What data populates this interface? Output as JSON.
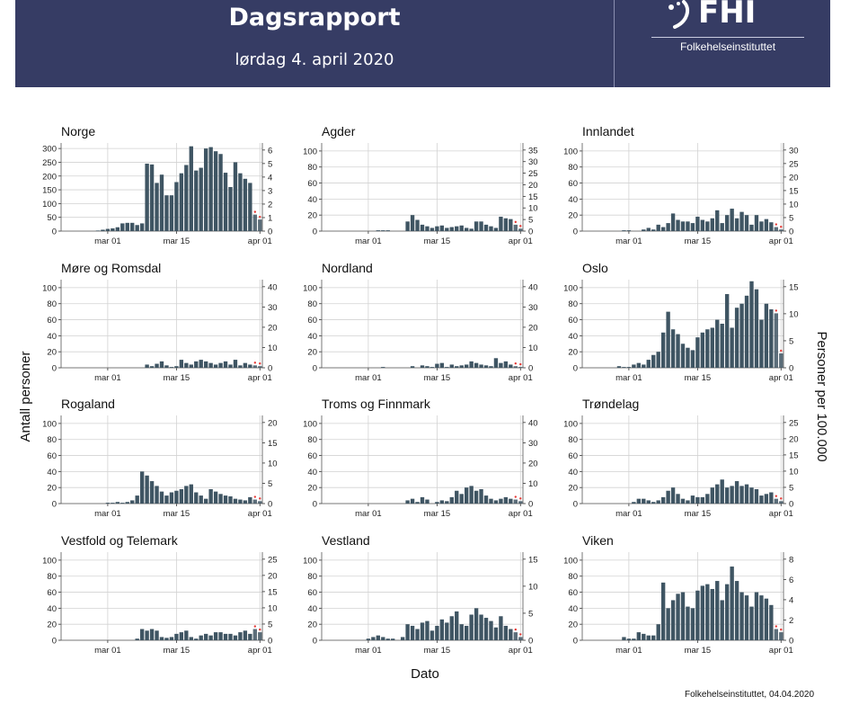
{
  "header": {
    "title": "Dagsrapport",
    "subtitle": "lørdag 4. april 2020",
    "logo_text": "FHI",
    "logo_subtext": "Folkehelseinstituttet"
  },
  "footer": "Folkehelseinstituttet, 04.04.2020",
  "chart_data": {
    "type": "bar",
    "xlabel": "Dato",
    "ylabel": "Antall personer",
    "ylabel_right": "Personer per 100.000",
    "xticks": [
      "mar 01",
      "mar 15",
      "apr 01"
    ],
    "start_date": "2020-02-21",
    "bar_color": "#3f5563",
    "marker_color": "#e53935",
    "panels": [
      {
        "name": "Norge",
        "yticks": [
          0,
          50,
          100,
          150,
          200,
          250,
          300
        ],
        "ylim": [
          0,
          320
        ],
        "right_ticks": [
          0,
          1,
          2,
          3,
          4,
          5,
          6
        ],
        "values": [
          0,
          0,
          0,
          0,
          0,
          0,
          0,
          2,
          5,
          8,
          10,
          14,
          28,
          30,
          30,
          22,
          28,
          245,
          242,
          175,
          205,
          130,
          130,
          178,
          210,
          240,
          308,
          220,
          230,
          300,
          305,
          290,
          280,
          212,
          160,
          250,
          210,
          190,
          175,
          60,
          42
        ]
      },
      {
        "name": "Agder",
        "yticks": [
          0,
          20,
          40,
          60,
          80,
          100
        ],
        "ylim": [
          0,
          110
        ],
        "right_ticks": [
          0,
          5,
          10,
          15,
          20,
          25,
          30,
          35
        ],
        "values": [
          0,
          0,
          0,
          0,
          0,
          0,
          0,
          0,
          0,
          0,
          0,
          1,
          1,
          1,
          0,
          0,
          0,
          12,
          20,
          14,
          8,
          6,
          4,
          6,
          7,
          4,
          5,
          6,
          7,
          4,
          3,
          12,
          12,
          8,
          6,
          4,
          18,
          16,
          15,
          8,
          3
        ]
      },
      {
        "name": "Innlandet",
        "yticks": [
          0,
          20,
          40,
          60,
          80,
          100
        ],
        "ylim": [
          0,
          110
        ],
        "right_ticks": [
          0,
          5,
          10,
          15,
          20,
          25,
          30
        ],
        "values": [
          0,
          0,
          0,
          0,
          0,
          0,
          0,
          0,
          1,
          1,
          0,
          0,
          2,
          4,
          2,
          8,
          5,
          10,
          22,
          14,
          12,
          12,
          10,
          18,
          14,
          12,
          16,
          26,
          10,
          20,
          28,
          16,
          24,
          20,
          8,
          20,
          12,
          15,
          11,
          5,
          2
        ]
      },
      {
        "name": "Møre og Romsdal",
        "yticks": [
          0,
          20,
          40,
          60,
          80,
          100
        ],
        "ylim": [
          0,
          110
        ],
        "right_ticks": [
          0,
          10,
          20,
          30,
          40
        ],
        "values": [
          0,
          0,
          0,
          0,
          0,
          0,
          0,
          0,
          0,
          0,
          0,
          0,
          0,
          0,
          0,
          0,
          0,
          4,
          2,
          5,
          8,
          3,
          1,
          2,
          10,
          6,
          4,
          8,
          10,
          8,
          6,
          4,
          6,
          8,
          4,
          10,
          3,
          6,
          4,
          3,
          2
        ]
      },
      {
        "name": "Nordland",
        "yticks": [
          0,
          20,
          40,
          60,
          80,
          100
        ],
        "ylim": [
          0,
          110
        ],
        "right_ticks": [
          0,
          10,
          20,
          30,
          40
        ],
        "values": [
          0,
          0,
          0,
          0,
          0,
          0,
          0,
          0,
          0,
          0,
          0,
          0,
          1,
          0,
          0,
          0,
          0,
          0,
          2,
          0,
          3,
          2,
          1,
          5,
          6,
          1,
          4,
          2,
          3,
          4,
          8,
          6,
          4,
          3,
          2,
          12,
          6,
          8,
          4,
          2,
          1
        ]
      },
      {
        "name": "Oslo",
        "yticks": [
          0,
          20,
          40,
          60,
          80,
          100
        ],
        "ylim": [
          0,
          110
        ],
        "right_ticks": [
          0,
          5,
          10,
          15
        ],
        "values": [
          0,
          0,
          0,
          0,
          0,
          0,
          0,
          2,
          1,
          1,
          4,
          6,
          4,
          10,
          16,
          20,
          44,
          70,
          48,
          42,
          30,
          25,
          22,
          38,
          44,
          48,
          50,
          60,
          55,
          92,
          50,
          75,
          80,
          90,
          108,
          98,
          60,
          80,
          73,
          68,
          18
        ]
      },
      {
        "name": "Rogaland",
        "yticks": [
          0,
          20,
          40,
          60,
          80,
          100
        ],
        "ylim": [
          0,
          110
        ],
        "right_ticks": [
          0,
          5,
          10,
          15,
          20
        ],
        "values": [
          0,
          0,
          0,
          0,
          0,
          0,
          0,
          0,
          0,
          1,
          1,
          2,
          1,
          2,
          4,
          10,
          40,
          35,
          28,
          22,
          15,
          10,
          14,
          16,
          18,
          22,
          24,
          14,
          10,
          6,
          18,
          15,
          12,
          10,
          9,
          6,
          5,
          4,
          8,
          5,
          3
        ]
      },
      {
        "name": "Troms og Finnmark",
        "yticks": [
          0,
          20,
          40,
          60,
          80,
          100
        ],
        "ylim": [
          0,
          110
        ],
        "right_ticks": [
          0,
          10,
          20,
          30,
          40
        ],
        "values": [
          0,
          0,
          0,
          0,
          0,
          0,
          0,
          0,
          0,
          0,
          0,
          0,
          0,
          0,
          0,
          0,
          0,
          4,
          6,
          2,
          8,
          5,
          0,
          2,
          4,
          3,
          8,
          16,
          12,
          20,
          22,
          16,
          18,
          10,
          6,
          4,
          6,
          8,
          6,
          5,
          3
        ]
      },
      {
        "name": "Trøndelag",
        "yticks": [
          0,
          20,
          40,
          60,
          80,
          100
        ],
        "ylim": [
          0,
          110
        ],
        "right_ticks": [
          0,
          5,
          10,
          15,
          20,
          25
        ],
        "values": [
          0,
          0,
          0,
          0,
          0,
          0,
          0,
          0,
          0,
          0,
          2,
          6,
          6,
          4,
          2,
          4,
          8,
          16,
          20,
          12,
          6,
          4,
          10,
          8,
          8,
          12,
          20,
          24,
          30,
          20,
          22,
          28,
          22,
          24,
          20,
          18,
          10,
          12,
          14,
          6,
          3
        ]
      },
      {
        "name": "Vestfold og Telemark",
        "yticks": [
          0,
          20,
          40,
          60,
          80,
          100
        ],
        "ylim": [
          0,
          110
        ],
        "right_ticks": [
          0,
          5,
          10,
          15,
          20,
          25
        ],
        "values": [
          0,
          0,
          0,
          0,
          0,
          0,
          0,
          0,
          0,
          0,
          0,
          0,
          0,
          0,
          0,
          2,
          14,
          12,
          14,
          12,
          4,
          3,
          4,
          8,
          10,
          12,
          4,
          2,
          6,
          8,
          6,
          10,
          10,
          8,
          8,
          6,
          10,
          12,
          8,
          14,
          10
        ]
      },
      {
        "name": "Vestland",
        "yticks": [
          0,
          20,
          40,
          60,
          80,
          100
        ],
        "ylim": [
          0,
          110
        ],
        "right_ticks": [
          0,
          5,
          10,
          15
        ],
        "values": [
          0,
          0,
          0,
          0,
          0,
          0,
          0,
          0,
          0,
          2,
          4,
          6,
          4,
          2,
          2,
          0,
          4,
          20,
          18,
          14,
          22,
          24,
          12,
          18,
          26,
          22,
          30,
          36,
          20,
          18,
          32,
          40,
          32,
          28,
          24,
          16,
          30,
          18,
          14,
          10,
          4
        ]
      },
      {
        "name": "Viken",
        "yticks": [
          0,
          20,
          40,
          60,
          80,
          100
        ],
        "ylim": [
          0,
          110
        ],
        "right_ticks": [
          0,
          2,
          4,
          6,
          8
        ],
        "values": [
          0,
          0,
          0,
          0,
          0,
          0,
          0,
          0,
          4,
          2,
          2,
          10,
          8,
          6,
          6,
          20,
          72,
          40,
          50,
          58,
          60,
          42,
          40,
          62,
          68,
          70,
          64,
          74,
          50,
          70,
          92,
          74,
          60,
          56,
          42,
          60,
          56,
          52,
          44,
          14,
          10
        ]
      }
    ]
  }
}
